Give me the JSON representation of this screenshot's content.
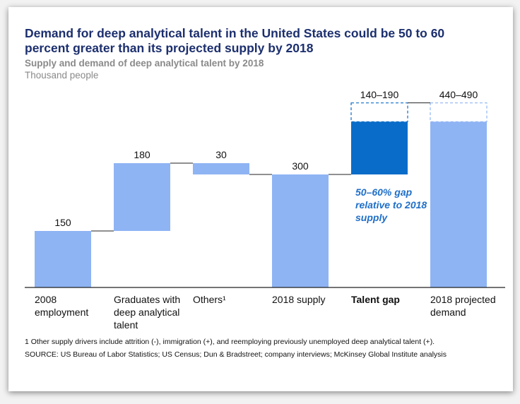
{
  "chart_data": {
    "type": "waterfall",
    "title": "Demand for deep analytical talent in the United States could be 50 to 60 percent greater than its projected supply by 2018",
    "subtitle": "Supply and demand of deep analytical talent by 2018",
    "unit_label": "Thousand people",
    "categories": [
      "2008 employment",
      "Graduates with deep analytical talent",
      "Others¹",
      "2018 supply",
      "Talent gap",
      "2018 projected demand"
    ],
    "measure": [
      "absolute",
      "relative",
      "relative",
      "total",
      "relative",
      "total"
    ],
    "values": [
      150,
      180,
      -30,
      300,
      140,
      440
    ],
    "values_high": [
      null,
      null,
      null,
      null,
      190,
      490
    ],
    "value_labels": [
      "150",
      "180",
      "30",
      "300",
      "140–190",
      "440–490"
    ],
    "colors": [
      "#8fb4f4",
      "#8fb4f4",
      "#8fb4f4",
      "#8fb4f4",
      "#0a6cc9",
      "#8fb4f4"
    ],
    "highlight_category": 4,
    "ylim": [
      0,
      540
    ],
    "annotation": "50–60% gap relative to 2018 supply",
    "footnote": "1 Other supply drivers include attrition (-), immigration (+), and reemploying previously unemployed deep analytical talent (+).",
    "source": "SOURCE: US Bureau of Labor Statistics; US Census; Dun & Bradstreet; company interviews; McKinsey Global Institute analysis"
  }
}
